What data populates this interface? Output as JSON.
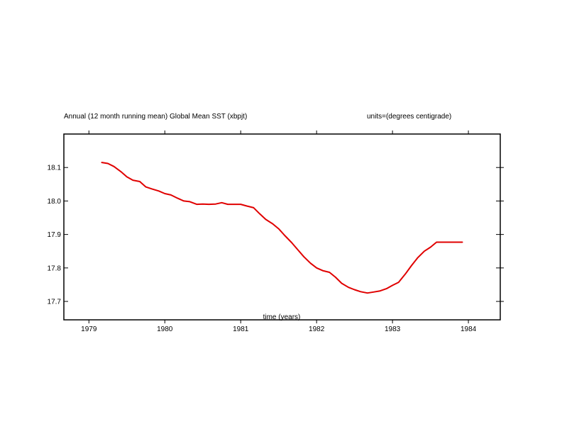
{
  "chart_data": {
    "type": "line",
    "title": "Annual (12 month running mean) Global Mean SST (xbpjt)",
    "units": "units=(degrees centigrade)",
    "xlabel": "time (years)",
    "ylabel": "",
    "xlim": [
      1978.67,
      1984.42
    ],
    "ylim": [
      17.645,
      18.2
    ],
    "xticks": [
      1979,
      1980,
      1981,
      1982,
      1983,
      1984
    ],
    "xtick_labels": [
      "1979",
      "1980",
      "1981",
      "1982",
      "1983",
      "1984"
    ],
    "yticks": [
      17.7,
      17.8,
      17.9,
      18.0,
      18.1
    ],
    "ytick_labels": [
      "17.7",
      "17.8",
      "17.9",
      "18.0",
      "18.1"
    ],
    "grid": false,
    "series": [
      {
        "color": "#e00000",
        "x": [
          1979.17,
          1979.25,
          1979.33,
          1979.42,
          1979.5,
          1979.58,
          1979.67,
          1979.75,
          1979.83,
          1979.92,
          1980.0,
          1980.08,
          1980.17,
          1980.25,
          1980.33,
          1980.42,
          1980.5,
          1980.58,
          1980.67,
          1980.75,
          1980.83,
          1980.92,
          1981.0,
          1981.08,
          1981.17,
          1981.25,
          1981.33,
          1981.42,
          1981.5,
          1981.58,
          1981.67,
          1981.75,
          1981.83,
          1981.92,
          1982.0,
          1982.08,
          1982.17,
          1982.25,
          1982.33,
          1982.42,
          1982.5,
          1982.58,
          1982.67,
          1982.75,
          1982.83,
          1982.92,
          1983.0,
          1983.08,
          1983.17,
          1983.25,
          1983.33,
          1983.42,
          1983.5,
          1983.58,
          1983.67,
          1983.75,
          1983.83,
          1983.92
        ],
        "y": [
          18.115,
          18.112,
          18.103,
          18.088,
          18.072,
          18.062,
          18.058,
          18.042,
          18.036,
          18.03,
          18.022,
          18.018,
          18.008,
          18.0,
          17.998,
          17.99,
          17.991,
          17.99,
          17.991,
          17.995,
          17.99,
          17.99,
          17.99,
          17.985,
          17.98,
          17.962,
          17.945,
          17.932,
          17.917,
          17.897,
          17.876,
          17.855,
          17.834,
          17.814,
          17.8,
          17.792,
          17.787,
          17.772,
          17.754,
          17.742,
          17.735,
          17.729,
          17.725,
          17.728,
          17.731,
          17.738,
          17.748,
          17.757,
          17.782,
          17.807,
          17.83,
          17.85,
          17.862,
          17.877,
          17.877,
          17.877,
          17.877,
          17.877
        ]
      }
    ]
  }
}
